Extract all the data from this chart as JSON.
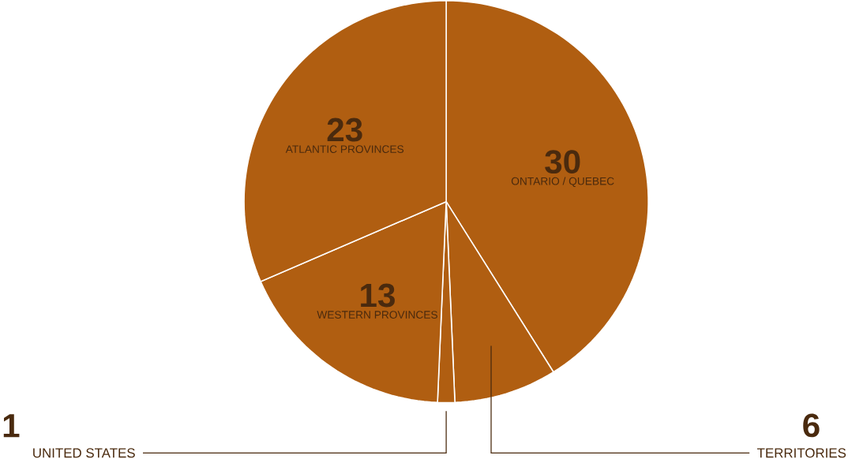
{
  "chart_data": {
    "type": "pie",
    "categories": [
      "ONTARIO / QUEBEC",
      "TERRITORIES",
      "UNITED STATES",
      "WESTERN PROVINCES",
      "ATLANTIC PROVINCES"
    ],
    "values": [
      30,
      6,
      1,
      13,
      23
    ],
    "colors": [
      "#b05e11",
      "#b05e11",
      "#b05e11",
      "#b05e11",
      "#b05e11"
    ],
    "data_labels": true
  }
}
